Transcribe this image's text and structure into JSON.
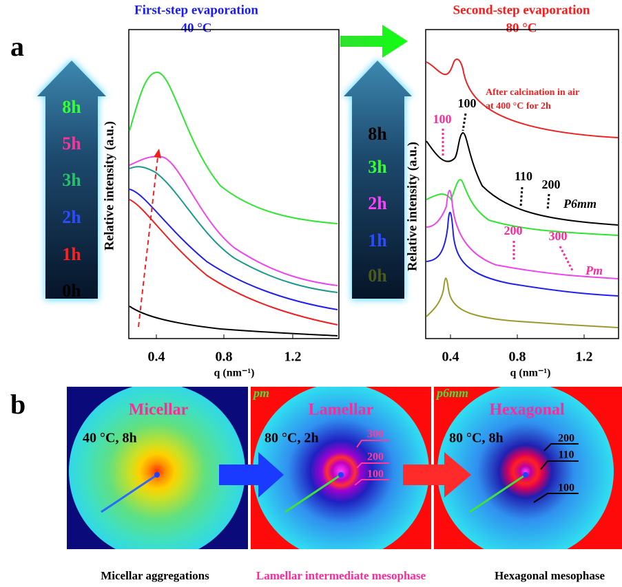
{
  "panel_a": {
    "label": "a",
    "left_chart": {
      "title": "First-step evaporation",
      "subtitle": "40 °C",
      "y_label": "Relative intensity (a.u.)",
      "x_label": "q (nm⁻¹)",
      "x_ticks": [
        "0.4",
        "0.8",
        "1.2"
      ]
    },
    "right_chart": {
      "title": "Second-step evaporation",
      "subtitle": "80 °C",
      "y_label": "Relative intensity (a.u.)",
      "x_label": "q (nm⁻¹)",
      "x_ticks": [
        "0.4",
        "0.8",
        "1.2"
      ],
      "annotations": [
        "After calcination in air",
        "at 400 °C for 2h",
        "100",
        "100",
        "110",
        "200",
        "P6mm",
        "200",
        "300",
        "Pm"
      ]
    },
    "left_arrow_labels": [
      "8h",
      "5h",
      "3h",
      "2h",
      "1h",
      "0h"
    ],
    "middle_arrow_labels": [
      "8h",
      "3h",
      "2h",
      "1h",
      "0h"
    ]
  },
  "panel_b": {
    "label": "b",
    "images": [
      {
        "title": "Micellar",
        "condition": "40 °C, 8h",
        "caption": "Micellar aggregations"
      },
      {
        "corner": "pm",
        "title": "Lamellar",
        "condition": "80 °C, 2h",
        "rings": [
          "300",
          "200",
          "100"
        ],
        "caption": "Lamellar intermediate mesophase"
      },
      {
        "corner": "p6mm",
        "title": "Hexagonal",
        "condition": "80 °C, 8h",
        "rings": [
          "200",
          "110",
          "100"
        ],
        "caption": "Hexagonal mesophase"
      }
    ]
  }
}
